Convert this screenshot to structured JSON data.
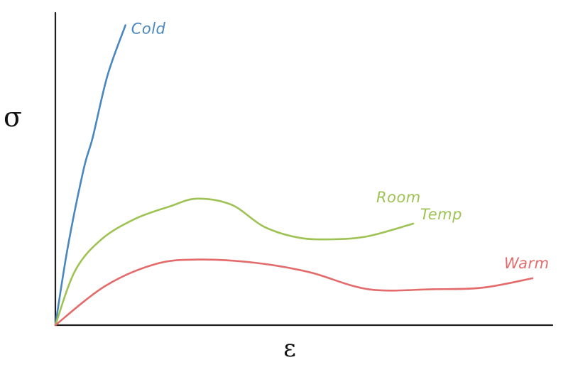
{
  "chart_data": {
    "type": "line",
    "xlabel": "ε",
    "ylabel": "σ",
    "xlim": [
      0,
      100
    ],
    "ylim": [
      0,
      100
    ],
    "grid": false,
    "legend": "none",
    "series": [
      {
        "name": "Cold",
        "label_lines": [
          "Cold"
        ],
        "color": "#4a86c0",
        "x": [
          0,
          2.5,
          5.7,
          7.5,
          10.5,
          14.1
        ],
        "y": [
          0,
          25,
          50,
          60,
          80,
          96
        ]
      },
      {
        "name": "Room Temp",
        "label_lines": [
          "Room",
          "Temp"
        ],
        "color": "#9fc254",
        "x": [
          0,
          4,
          9.3,
          16,
          23,
          28.5,
          35.5,
          42,
          49,
          56,
          63,
          72
        ],
        "y": [
          0,
          17.5,
          27.5,
          34,
          38,
          40.5,
          38.5,
          31.5,
          28,
          27.5,
          28.5,
          32.5
        ]
      },
      {
        "name": "Warm",
        "label_lines": [
          "Warm"
        ],
        "color": "#e46b6b",
        "x": [
          0,
          10,
          20,
          28.5,
          40,
          51,
          63,
          76,
          86,
          96
        ],
        "y": [
          0,
          12.5,
          19.5,
          21,
          20,
          17,
          11.5,
          11.5,
          12,
          15
        ]
      }
    ]
  }
}
